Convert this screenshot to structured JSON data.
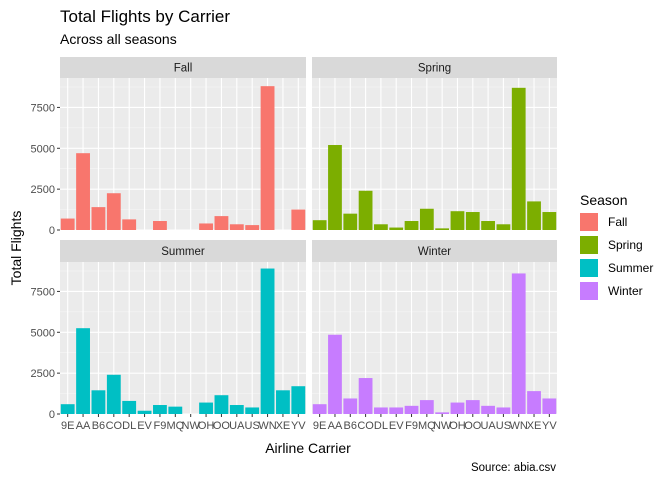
{
  "chart_data": {
    "type": "bar",
    "title": "Total Flights by Carrier",
    "subtitle": "Across all seasons",
    "xlabel": "Airline Carrier",
    "ylabel": "Total Flights",
    "caption": "Source: abia.csv",
    "legend_title": "Season",
    "legend_position": "right",
    "ylim": [
      0,
      9300
    ],
    "y_ticks": [
      0,
      2500,
      5000,
      7500
    ],
    "y_tick_labels": [
      "0",
      "2500",
      "5000",
      "7500"
    ],
    "categories": [
      "9E",
      "AA",
      "B6",
      "CO",
      "DL",
      "EV",
      "F9",
      "MQ",
      "NW",
      "OH",
      "OO",
      "UA",
      "US",
      "WN",
      "XE",
      "YV"
    ],
    "x_tick_labels": [
      "9E",
      "AA",
      "B6",
      "CO",
      "DL",
      "EV",
      "F9",
      "MQ",
      "NW",
      "OH",
      "OO",
      "UA",
      "US",
      "WN",
      "XE",
      "YV"
    ],
    "grid": true,
    "facets": [
      {
        "name": "Fall",
        "color": "#F8766D",
        "values": [
          700,
          4700,
          1400,
          2250,
          650,
          0,
          550,
          0,
          0,
          400,
          850,
          350,
          300,
          8800,
          0,
          1250
        ]
      },
      {
        "name": "Spring",
        "color": "#7CAE00",
        "values": [
          600,
          5200,
          1000,
          2400,
          350,
          150,
          550,
          1300,
          100,
          1150,
          1100,
          550,
          350,
          8700,
          1750,
          1100
        ]
      },
      {
        "name": "Summer",
        "color": "#00BFC4",
        "values": [
          600,
          5250,
          1450,
          2400,
          800,
          200,
          550,
          450,
          0,
          700,
          1150,
          550,
          400,
          8900,
          1450,
          1700
        ]
      },
      {
        "name": "Winter",
        "color": "#C77CFF",
        "values": [
          600,
          4850,
          950,
          2200,
          400,
          400,
          500,
          850,
          100,
          700,
          850,
          500,
          400,
          8600,
          1400,
          950
        ]
      }
    ]
  }
}
